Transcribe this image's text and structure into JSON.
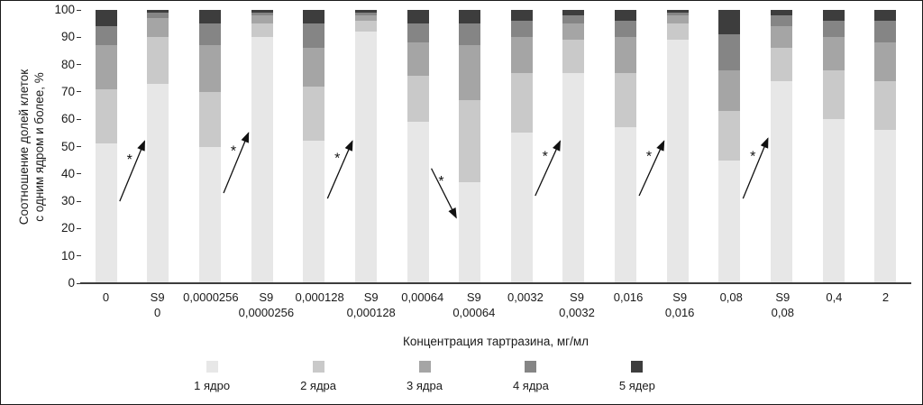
{
  "figure": {
    "y_axis_title": "Соотношение долей клеток\nс одним ядром и более, %",
    "x_axis_title": "Концентрация тартразина, мг/мл",
    "significance_marker": "*"
  },
  "chart_data": {
    "type": "bar",
    "stacked": true,
    "title": "",
    "xlabel": "Концентрация тартразина, мг/мл",
    "ylabel": "Соотношение долей клеток с одним ядром и более, %",
    "ylim": [
      0,
      100
    ],
    "y_ticks": [
      0,
      10,
      20,
      30,
      40,
      50,
      60,
      70,
      80,
      90,
      100
    ],
    "grid": false,
    "legend_position": "bottom",
    "categories": [
      "0",
      "S9\n0",
      "0,0000256",
      "S9\n0,0000256",
      "0,000128",
      "S9\n0,000128",
      "0,00064",
      "S9\n0,00064",
      "0,0032",
      "S9\n0,0032",
      "0,016",
      "S9\n0,016",
      "0,08",
      "S9\n0,08",
      "0,4",
      "2"
    ],
    "series": [
      {
        "name": "1 ядро",
        "color": "#e7e7e7",
        "values": [
          51,
          73,
          50,
          90,
          52,
          92,
          59,
          37,
          55,
          77,
          57,
          89,
          45,
          74,
          60,
          56
        ]
      },
      {
        "name": "2 ядра",
        "color": "#c9c9c9",
        "values": [
          20,
          17,
          20,
          5,
          20,
          4,
          17,
          30,
          22,
          12,
          20,
          6,
          18,
          12,
          18,
          18
        ]
      },
      {
        "name": "3 ядра",
        "color": "#a5a5a5",
        "values": [
          16,
          7,
          17,
          3,
          14,
          2,
          12,
          20,
          13,
          6,
          13,
          3,
          15,
          8,
          12,
          14
        ]
      },
      {
        "name": "4 ядра",
        "color": "#858585",
        "values": [
          7,
          2,
          8,
          1,
          9,
          1,
          7,
          8,
          6,
          3,
          6,
          1,
          13,
          4,
          6,
          8
        ]
      },
      {
        "name": "5 ядер",
        "color": "#3d3d3d",
        "values": [
          6,
          1,
          5,
          1,
          5,
          1,
          5,
          5,
          4,
          2,
          4,
          1,
          9,
          2,
          4,
          4
        ]
      }
    ],
    "annotations": [
      {
        "from_bar": 0,
        "to_bar": 1,
        "from_pct": 30,
        "to_pct": 52,
        "label": "*",
        "direction": "up"
      },
      {
        "from_bar": 2,
        "to_bar": 3,
        "from_pct": 33,
        "to_pct": 55,
        "label": "*",
        "direction": "up"
      },
      {
        "from_bar": 4,
        "to_bar": 5,
        "from_pct": 31,
        "to_pct": 52,
        "label": "*",
        "direction": "up"
      },
      {
        "from_bar": 6,
        "to_bar": 7,
        "from_pct": 42,
        "to_pct": 24,
        "label": "*",
        "direction": "down"
      },
      {
        "from_bar": 8,
        "to_bar": 9,
        "from_pct": 32,
        "to_pct": 52,
        "label": "*",
        "direction": "up"
      },
      {
        "from_bar": 10,
        "to_bar": 11,
        "from_pct": 32,
        "to_pct": 52,
        "label": "*",
        "direction": "up"
      },
      {
        "from_bar": 12,
        "to_bar": 13,
        "from_pct": 31,
        "to_pct": 53,
        "label": "*",
        "direction": "up"
      }
    ]
  }
}
